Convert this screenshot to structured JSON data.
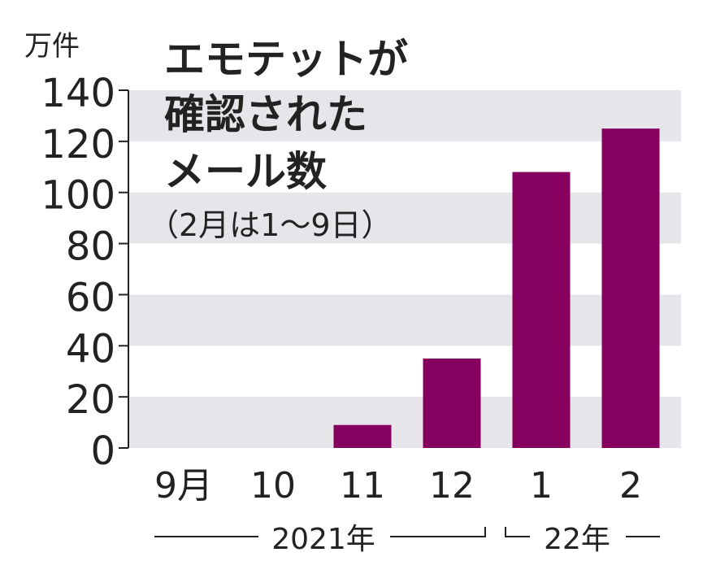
{
  "chart_data": {
    "type": "bar",
    "title": "エモテットが確認されたメール数",
    "subtitle": "（2月は1〜9日）",
    "ylabel": "万件",
    "categories": [
      "9月",
      "10",
      "11",
      "12",
      "1",
      "2"
    ],
    "values": [
      0,
      0,
      9,
      35,
      108,
      125
    ],
    "year_labels": [
      "2021年",
      "22年"
    ],
    "ylim": [
      0,
      140
    ],
    "yticks": [
      0,
      20,
      40,
      60,
      80,
      100,
      120,
      140
    ],
    "grid": "alternating gray bands",
    "bar_color": "#86005f",
    "band_color": "#e6e6ea"
  }
}
